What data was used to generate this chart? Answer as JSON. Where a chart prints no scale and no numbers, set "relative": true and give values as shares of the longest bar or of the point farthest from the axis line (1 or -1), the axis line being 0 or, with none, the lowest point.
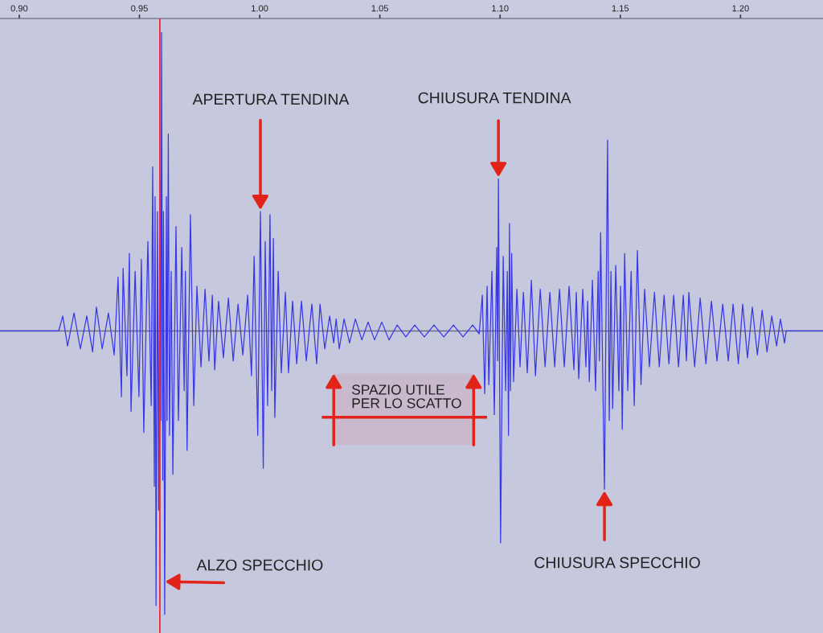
{
  "chart_data": {
    "type": "line",
    "relative": true,
    "color": "#3737e8",
    "x": [
      0.892,
      0.9164,
      0.9181,
      0.9201,
      0.9228,
      0.9254,
      0.9281,
      0.9305,
      0.9321,
      0.9345,
      0.9371,
      0.9395,
      0.9411,
      0.9425,
      0.9432,
      0.9448,
      0.9458,
      0.9465,
      0.9482,
      0.9498,
      0.9508,
      0.9518,
      0.9535,
      0.9549,
      0.9555,
      0.9562,
      0.9565,
      0.9569,
      0.9575,
      0.958,
      0.9585,
      0.9589,
      0.9592,
      0.9597,
      0.96,
      0.9605,
      0.9612,
      0.9615,
      0.962,
      0.9625,
      0.9632,
      0.9639,
      0.9652,
      0.9662,
      0.9676,
      0.9686,
      0.9691,
      0.9698,
      0.9712,
      0.9726,
      0.9739,
      0.9756,
      0.9773,
      0.9789,
      0.9803,
      0.9813,
      0.9829,
      0.9849,
      0.987,
      0.989,
      0.991,
      0.993,
      0.995,
      0.9966,
      0.9977,
      0.9992,
      1.0003,
      1.0015,
      1.0023,
      1.0033,
      1.0043,
      1.005,
      1.0057,
      1.0063,
      1.0077,
      1.009,
      1.0107,
      1.012,
      1.0137,
      1.0154,
      1.0174,
      1.0194,
      1.0217,
      1.0237,
      1.0251,
      1.0271,
      1.0291,
      1.0308,
      1.0318,
      1.0331,
      1.0351,
      1.0374,
      1.0398,
      1.0425,
      1.0451,
      1.0478,
      1.0508,
      1.0538,
      1.0572,
      1.0608,
      1.0645,
      1.0685,
      1.0725,
      1.0766,
      1.0806,
      1.0846,
      1.0886,
      1.0913,
      1.0926,
      1.0936,
      1.0946,
      1.0953,
      1.0966,
      1.0976,
      1.0986,
      1.099,
      1.0993,
      1.1002,
      1.1013,
      1.1023,
      1.103,
      1.1035,
      1.1039,
      1.1043,
      1.1048,
      1.1056,
      1.107,
      1.1083,
      1.1097,
      1.1113,
      1.113,
      1.1147,
      1.1167,
      1.1187,
      1.1207,
      1.1227,
      1.1247,
      1.1267,
      1.1287,
      1.1307,
      1.1317,
      1.1327,
      1.1344,
      1.1357,
      1.1364,
      1.1371,
      1.1384,
      1.1397,
      1.1408,
      1.1413,
      1.1418,
      1.1434,
      1.1447,
      1.1454,
      1.1461,
      1.1468,
      1.1481,
      1.1494,
      1.1501,
      1.1508,
      1.1518,
      1.1531,
      1.1545,
      1.1558,
      1.1571,
      1.1586,
      1.1601,
      1.1621,
      1.1642,
      1.1662,
      1.1682,
      1.1702,
      1.1722,
      1.1742,
      1.1762,
      1.1775,
      1.1785,
      1.1809,
      1.1832,
      1.1856,
      1.1879,
      1.1902,
      1.1926,
      1.1949,
      1.1969,
      1.1991,
      1.2009,
      1.2029,
      1.2049,
      1.207,
      1.209,
      1.211,
      1.213,
      1.215,
      1.2166,
      1.2183,
      1.219,
      1.234
    ],
    "values": [
      0,
      0,
      0.05,
      -0.05,
      0.06,
      -0.06,
      0.05,
      -0.07,
      0.08,
      -0.06,
      0.06,
      -0.08,
      0.18,
      -0.22,
      0.21,
      -0.15,
      0.26,
      -0.27,
      0.2,
      -0.22,
      0.24,
      -0.34,
      0.3,
      -0.25,
      0.55,
      -0.52,
      0.45,
      -0.92,
      0.4,
      -0.6,
      0.5,
      -0.3,
      1.0,
      -0.5,
      0.4,
      -0.95,
      0.45,
      -0.3,
      0.66,
      -0.35,
      0.2,
      -0.48,
      0.35,
      -0.3,
      0.28,
      -0.2,
      0.2,
      -0.4,
      0.39,
      -0.25,
      0.15,
      -0.12,
      0.14,
      -0.1,
      0.12,
      -0.13,
      0.1,
      -0.09,
      0.11,
      -0.1,
      0.09,
      -0.08,
      0.12,
      -0.15,
      0.25,
      -0.35,
      0.4,
      -0.46,
      0.3,
      -0.25,
      0.39,
      -0.2,
      0.31,
      -0.29,
      0.2,
      -0.14,
      0.13,
      -0.14,
      0.1,
      -0.11,
      0.1,
      -0.1,
      0.09,
      -0.11,
      0.09,
      -0.06,
      0.05,
      -0.04,
      0.04,
      -0.06,
      0.04,
      -0.04,
      0.04,
      -0.03,
      0.03,
      -0.03,
      0.03,
      -0.03,
      0.02,
      -0.02,
      0.02,
      -0.02,
      0.02,
      -0.02,
      0.02,
      -0.02,
      0.02,
      -0.01,
      0.12,
      -0.21,
      0.15,
      -0.18,
      0.2,
      -0.28,
      0.28,
      -0.1,
      0.51,
      -0.71,
      0.25,
      -0.2,
      0.2,
      -0.35,
      0.36,
      -0.2,
      0.26,
      -0.17,
      0.14,
      -0.12,
      0.13,
      -0.14,
      0.17,
      -0.15,
      0.14,
      -0.12,
      0.13,
      -0.12,
      0.14,
      -0.12,
      0.15,
      -0.13,
      0.13,
      -0.16,
      0.14,
      -0.12,
      0.1,
      -0.17,
      0.17,
      -0.2,
      0.2,
      -0.1,
      0.33,
      -0.53,
      0.64,
      -0.3,
      0.2,
      -0.26,
      0.22,
      -0.2,
      0.15,
      -0.33,
      0.26,
      -0.2,
      0.2,
      -0.25,
      0.27,
      -0.18,
      0.14,
      -0.12,
      0.13,
      -0.12,
      0.12,
      -0.11,
      0.12,
      -0.12,
      0.12,
      -0.1,
      0.13,
      -0.12,
      0.11,
      -0.11,
      0.1,
      -0.1,
      0.09,
      -0.1,
      0.09,
      -0.11,
      0.09,
      -0.09,
      0.08,
      -0.08,
      0.07,
      -0.07,
      0.05,
      -0.05,
      0.04,
      -0.04,
      0,
      0
    ],
    "xlim": [
      0.892,
      1.2343
    ],
    "xticks": [
      {
        "value": 0.9,
        "label": "0.90"
      },
      {
        "value": 0.95,
        "label": "0.95"
      },
      {
        "value": 1.0,
        "label": "1.00"
      },
      {
        "value": 1.05,
        "label": "1.05"
      },
      {
        "value": 1.1,
        "label": "1.10"
      },
      {
        "value": 1.15,
        "label": "1.15"
      },
      {
        "value": 1.2,
        "label": "1.20"
      }
    ],
    "ref_lines": [
      {
        "axis": "x",
        "value": 0.9585,
        "color": "#ee2a36"
      }
    ],
    "bands": [
      {
        "axis": "x",
        "from": 1.0308,
        "to": 1.089,
        "label": "SPAZIO UTILE\nPER LO SCATTO",
        "color": "#e2231a"
      }
    ],
    "annotations": [
      {
        "text": "APERTURA TENDINA",
        "x": 1.0003,
        "y": 0.4
      },
      {
        "text": "CHIUSURA TENDINA",
        "x": 1.0993,
        "y": 0.51
      },
      {
        "text": "ALZO SPECCHIO",
        "x": 0.96,
        "y": -0.84
      },
      {
        "text": "CHIUSURA SPECCHIO",
        "x": 1.1434,
        "y": -0.53
      }
    ]
  }
}
